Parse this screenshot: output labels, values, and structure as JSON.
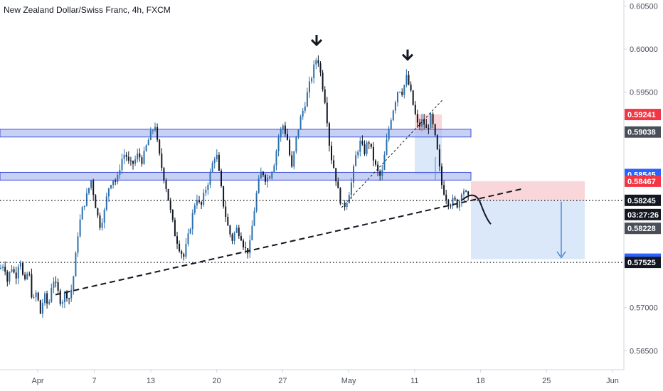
{
  "header": {
    "title": "New Zealand Dollar/Swiss Franc, 4h, FXCM"
  },
  "chart_data": {
    "type": "candlestick",
    "title": "New Zealand Dollar/Swiss Franc, 4h, FXCM",
    "ylim": [
      0.5628,
      0.6057
    ],
    "y_ticks": [
      "0.60500",
      "0.60000",
      "0.59500",
      "0.57000",
      "0.56500"
    ],
    "x_ticks": [
      "Apr",
      "7",
      "13",
      "20",
      "27",
      "May",
      "11",
      "18",
      "25",
      "Jun"
    ],
    "x_tick_dates": [
      "2020-04-01",
      "2020-04-07",
      "2020-04-13",
      "2020-04-20",
      "2020-04-27",
      "2020-05-04",
      "2020-05-11",
      "2020-05-18",
      "2020-05-25",
      "2020-06-01"
    ],
    "colors": {
      "up": "#2c6fad",
      "down": "#131722",
      "zone": "#a9b8f0",
      "zone_border": "#3b4fd8"
    },
    "resistance_zones": [
      {
        "from": 0.5898,
        "to": 0.5907
      },
      {
        "from": 0.5848,
        "to": 0.5857
      }
    ],
    "horizontal_levels": [
      {
        "price": 0.58245,
        "style": "dotted"
      },
      {
        "price": 0.57525,
        "style": "dotted"
      }
    ],
    "price_labels": [
      {
        "text": "0.59241",
        "price": 0.59241,
        "bg": "#f23645",
        "fg": "#ffffff"
      },
      {
        "text": "0.59038",
        "price": 0.59038,
        "bg": "#4a4e59",
        "fg": "#ffffff"
      },
      {
        "text": "0.58545",
        "price": 0.58545,
        "bg": "#2962ff",
        "fg": "#ffffff"
      },
      {
        "text": "0.58467",
        "price": 0.58467,
        "bg": "#f23645",
        "fg": "#ffffff"
      },
      {
        "text": "0.58245",
        "price": 0.58245,
        "bg": "#131722",
        "fg": "#ffffff"
      },
      {
        "text": "03:27:26",
        "price": 0.5808,
        "bg": "#131722",
        "fg": "#ffffff"
      },
      {
        "text": "0.58228",
        "price": 0.5792,
        "bg": "#4a4e59",
        "fg": "#ffffff"
      },
      {
        "text": "0.57562",
        "price": 0.57562,
        "bg": "#2962ff",
        "fg": "#ffffff"
      },
      {
        "text": "0.57525",
        "price": 0.57525,
        "bg": "#131722",
        "fg": "#ffffff"
      }
    ],
    "path_points": [
      [
        0,
        0.5745
      ],
      [
        6,
        0.5752
      ],
      [
        10,
        0.573
      ],
      [
        16,
        0.5748
      ],
      [
        22,
        0.5735
      ],
      [
        28,
        0.576
      ],
      [
        34,
        0.5725
      ],
      [
        40,
        0.5745
      ],
      [
        46,
        0.5705
      ],
      [
        52,
        0.572
      ],
      [
        56,
        0.569
      ],
      [
        62,
        0.5715
      ],
      [
        68,
        0.57
      ],
      [
        74,
        0.5735
      ],
      [
        80,
        0.5722
      ],
      [
        86,
        0.5705
      ],
      [
        92,
        0.5718
      ],
      [
        98,
        0.571
      ],
      [
        104,
        0.574
      ],
      [
        110,
        0.579
      ],
      [
        116,
        0.5815
      ],
      [
        122,
        0.583
      ],
      [
        128,
        0.5848
      ],
      [
        134,
        0.582
      ],
      [
        140,
        0.5795
      ],
      [
        146,
        0.5808
      ],
      [
        152,
        0.5838
      ],
      [
        158,
        0.585
      ],
      [
        164,
        0.5845
      ],
      [
        170,
        0.587
      ],
      [
        176,
        0.588
      ],
      [
        182,
        0.5865
      ],
      [
        188,
        0.5868
      ],
      [
        194,
        0.5878
      ],
      [
        200,
        0.587
      ],
      [
        206,
        0.5888
      ],
      [
        212,
        0.5902
      ],
      [
        218,
        0.5912
      ],
      [
        222,
        0.5885
      ],
      [
        228,
        0.586
      ],
      [
        234,
        0.5838
      ],
      [
        240,
        0.581
      ],
      [
        246,
        0.5785
      ],
      [
        252,
        0.577
      ],
      [
        258,
        0.5758
      ],
      [
        264,
        0.578
      ],
      [
        270,
        0.5805
      ],
      [
        276,
        0.583
      ],
      [
        282,
        0.5815
      ],
      [
        288,
        0.5835
      ],
      [
        294,
        0.585
      ],
      [
        300,
        0.5872
      ],
      [
        304,
        0.588
      ],
      [
        308,
        0.5855
      ],
      [
        314,
        0.582
      ],
      [
        320,
        0.5795
      ],
      [
        326,
        0.5778
      ],
      [
        332,
        0.5792
      ],
      [
        338,
        0.5785
      ],
      [
        344,
        0.5768
      ],
      [
        350,
        0.5765
      ],
      [
        356,
        0.5805
      ],
      [
        362,
        0.584
      ],
      [
        368,
        0.586
      ],
      [
        374,
        0.5848
      ],
      [
        380,
        0.5855
      ],
      [
        386,
        0.587
      ],
      [
        392,
        0.59
      ],
      [
        398,
        0.5912
      ],
      [
        404,
        0.5895
      ],
      [
        410,
        0.586
      ],
      [
        416,
        0.5895
      ],
      [
        422,
        0.5918
      ],
      [
        428,
        0.5935
      ],
      [
        434,
        0.5955
      ],
      [
        440,
        0.5975
      ],
      [
        446,
        0.5993
      ],
      [
        452,
        0.5965
      ],
      [
        458,
        0.5935
      ],
      [
        464,
        0.588
      ],
      [
        470,
        0.586
      ],
      [
        476,
        0.5832
      ],
      [
        482,
        0.5815
      ],
      [
        488,
        0.5825
      ],
      [
        494,
        0.5845
      ],
      [
        500,
        0.5875
      ],
      [
        506,
        0.5892
      ],
      [
        512,
        0.588
      ],
      [
        518,
        0.5895
      ],
      [
        524,
        0.5875
      ],
      [
        530,
        0.5858
      ],
      [
        536,
        0.585
      ],
      [
        542,
        0.5885
      ],
      [
        548,
        0.5915
      ],
      [
        554,
        0.5935
      ],
      [
        560,
        0.5955
      ],
      [
        566,
        0.595
      ],
      [
        571,
        0.5968
      ],
      [
        576,
        0.5955
      ],
      [
        582,
        0.593
      ],
      [
        588,
        0.5908
      ],
      [
        594,
        0.5918
      ],
      [
        600,
        0.5905
      ],
      [
        606,
        0.5922
      ],
      [
        612,
        0.5895
      ],
      [
        616,
        0.5875
      ],
      [
        620,
        0.5845
      ],
      [
        626,
        0.583
      ],
      [
        632,
        0.582
      ],
      [
        638,
        0.5825
      ],
      [
        644,
        0.5818
      ],
      [
        650,
        0.584
      ],
      [
        656,
        0.583
      ],
      [
        660,
        0.5824
      ]
    ],
    "trendlines": [
      {
        "x1": 78,
        "y1": 0.5715,
        "x2": 735,
        "y2": 0.5838,
        "style": "dashed"
      },
      {
        "x1": 480,
        "y1": 0.5816,
        "x2": 622,
        "y2": 0.5941,
        "style": "dashed-thin"
      }
    ],
    "down_arrows": [
      {
        "x": 445,
        "price": 0.6005
      },
      {
        "x": 573,
        "price": 0.5988
      }
    ],
    "trade_setup": {
      "entry": 0.58245,
      "stop": 0.58467,
      "target": 0.57562,
      "x_from": 662,
      "x_to": 822
    },
    "first_setup": {
      "entry": 0.59038,
      "stop": 0.59241,
      "target": 0.58545,
      "x_from": 583,
      "x_to": 621
    }
  }
}
